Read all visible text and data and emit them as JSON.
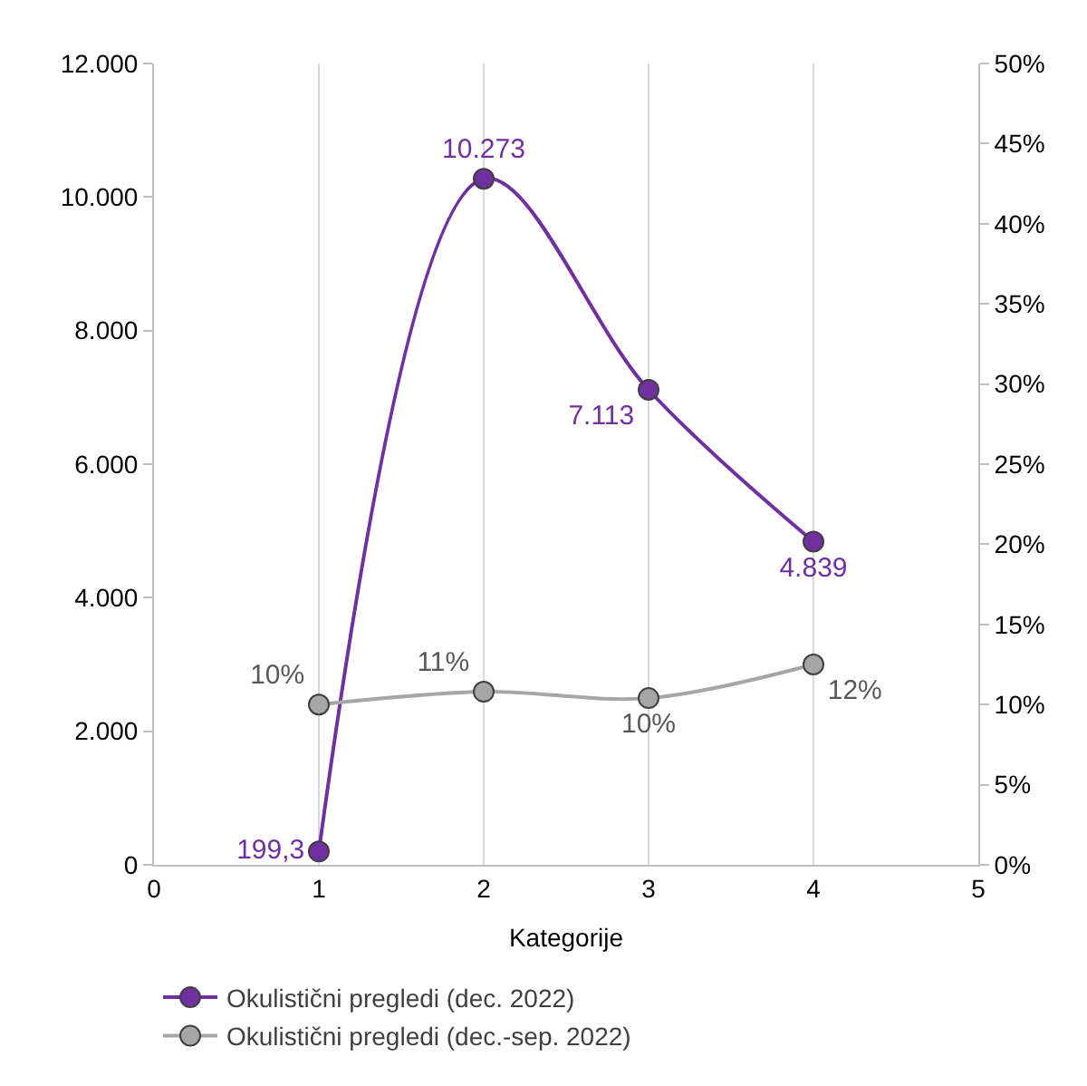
{
  "chart_data": {
    "type": "line",
    "xlabel": "Kategorije",
    "xlim": [
      0,
      5
    ],
    "xticks": [
      0,
      1,
      2,
      3,
      4,
      5
    ],
    "ylim": [
      0,
      12000
    ],
    "yticks": [
      {
        "value": 0,
        "label": "0"
      },
      {
        "value": 2000,
        "label": "2.000"
      },
      {
        "value": 4000,
        "label": "4.000"
      },
      {
        "value": 6000,
        "label": "6.000"
      },
      {
        "value": 8000,
        "label": "8.000"
      },
      {
        "value": 10000,
        "label": "10.000"
      },
      {
        "value": 12000,
        "label": "12.000"
      }
    ],
    "y2lim": [
      0,
      50
    ],
    "y2ticks": [
      {
        "value": 0,
        "label": "0%"
      },
      {
        "value": 5,
        "label": "5%"
      },
      {
        "value": 10,
        "label": "10%"
      },
      {
        "value": 15,
        "label": "15%"
      },
      {
        "value": 20,
        "label": "20%"
      },
      {
        "value": 25,
        "label": "25%"
      },
      {
        "value": 30,
        "label": "30%"
      },
      {
        "value": 35,
        "label": "35%"
      },
      {
        "value": 40,
        "label": "40%"
      },
      {
        "value": 45,
        "label": "45%"
      },
      {
        "value": 50,
        "label": "50%"
      }
    ],
    "grid": "x",
    "legend": "bottom",
    "marker": "circle",
    "line_style": "solid",
    "series": [
      {
        "name": "Okulistični pregledi (dec. 2022)",
        "color": "#7030a0",
        "x": [
          1,
          2,
          3,
          4
        ],
        "values": [
          199.3,
          10273,
          7113,
          4839
        ],
        "value_labels": [
          "199,3",
          "10.273",
          "7.113",
          "4.839"
        ]
      },
      {
        "name": "Okulistični pregledi (dec.-sep. 2022)",
        "color": "#a6a6a6",
        "axis": "y2",
        "x": [
          1,
          2,
          3,
          4
        ],
        "values": [
          10,
          10.8,
          10.4,
          12.5
        ],
        "value_labels": [
          "10%",
          "11%",
          "10%",
          "12%"
        ]
      }
    ]
  }
}
